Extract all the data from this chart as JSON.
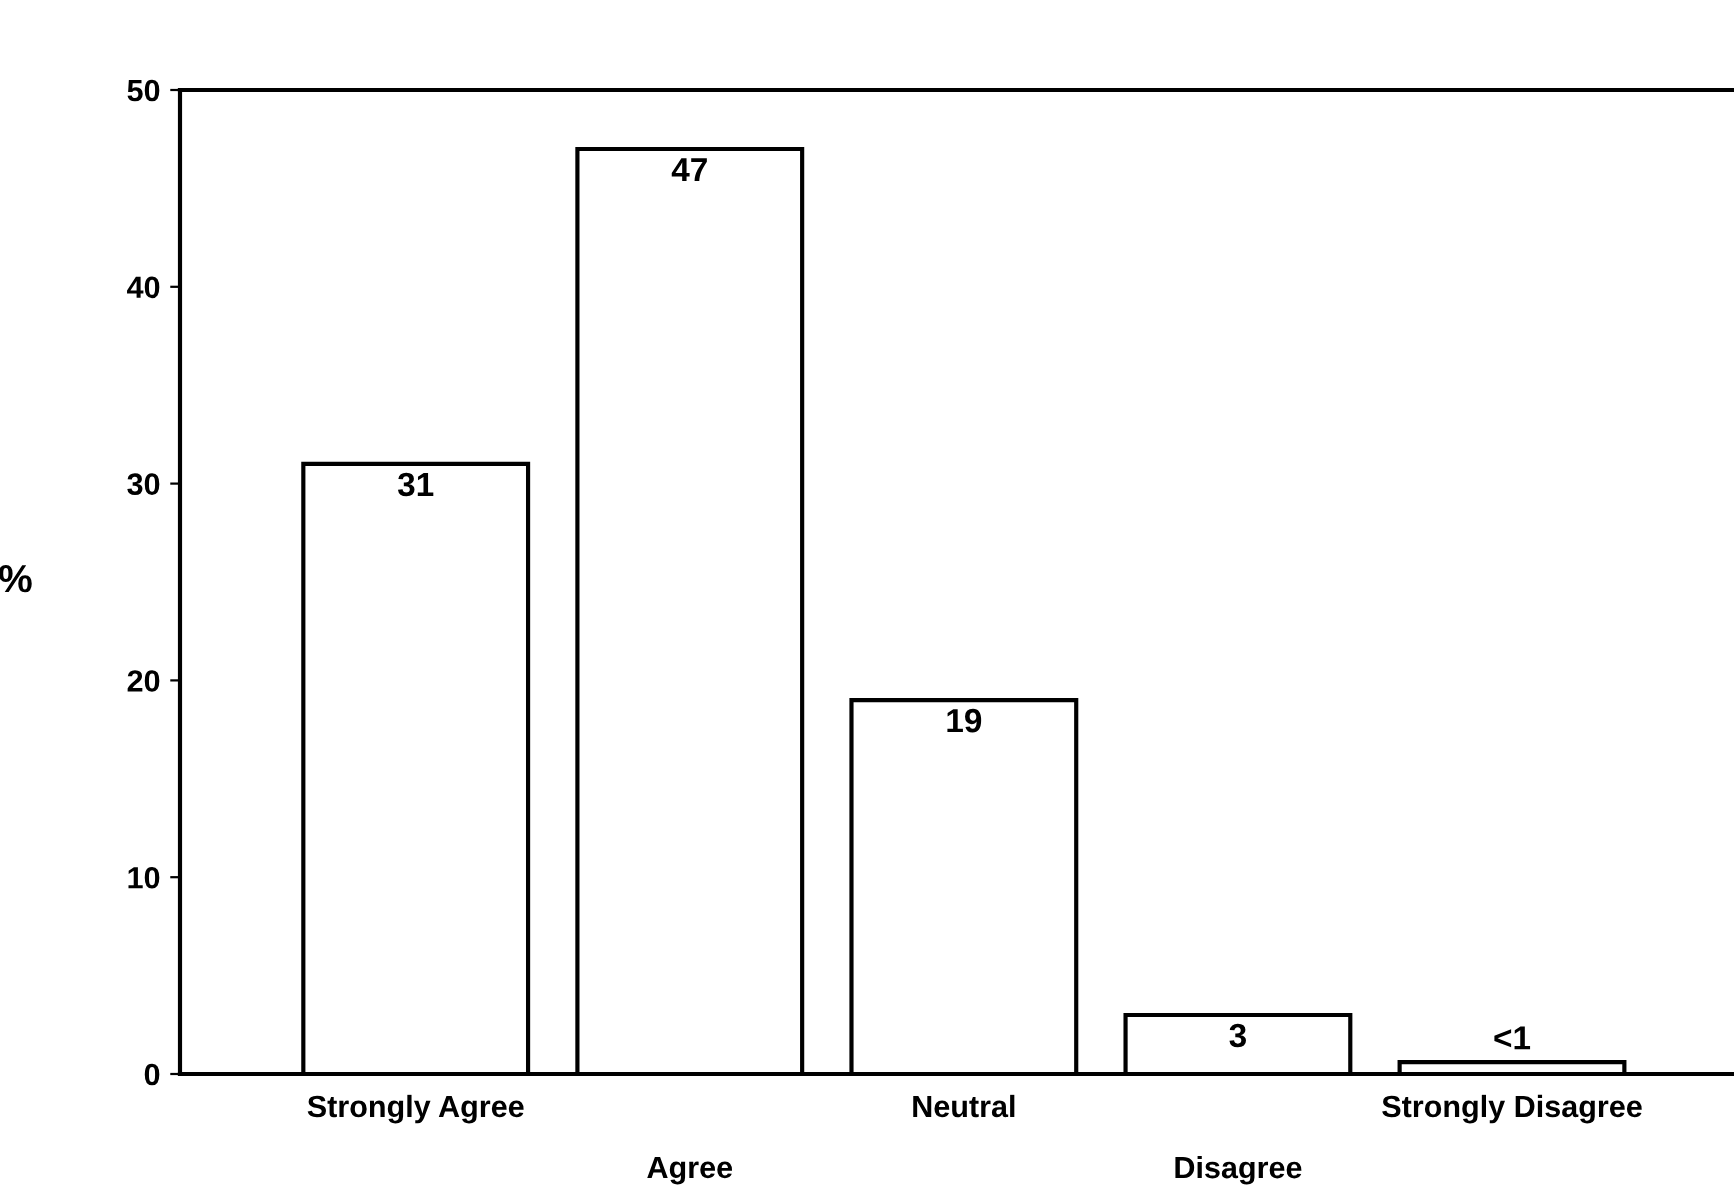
{
  "chart_data": {
    "type": "bar",
    "ylabel": "%",
    "categories": [
      "Strongly Agree",
      "Agree",
      "Neutral",
      "Disagree",
      "Strongly Disagree"
    ],
    "values": [
      31,
      47,
      19,
      3,
      0.6
    ],
    "value_labels": [
      "31",
      "47",
      "19",
      "3",
      "<1"
    ],
    "color": "#ffffff",
    "ylim": [
      0,
      50
    ],
    "yticks": [
      0,
      10,
      20,
      30,
      40,
      50
    ],
    "grid": false,
    "legend": false
  }
}
